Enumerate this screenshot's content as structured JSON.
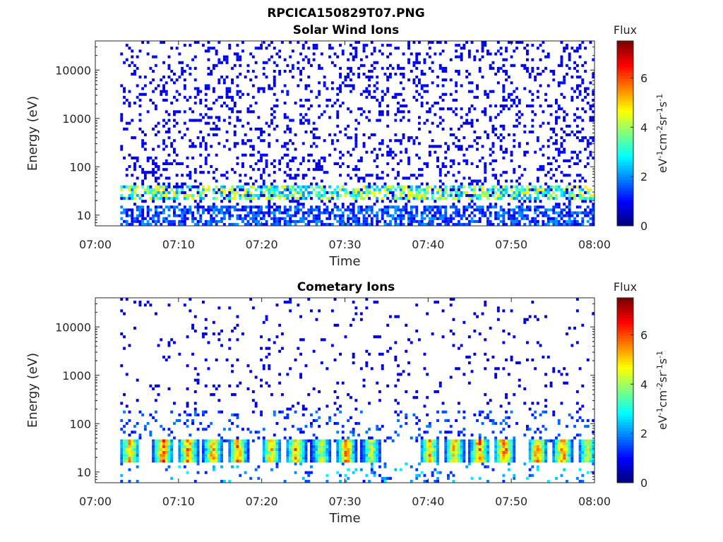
{
  "figure": {
    "filename_title": "RPCICA150829T07.PNG"
  },
  "chart_data": [
    {
      "type": "heatmap",
      "title": "Solar Wind Ions",
      "xlabel": "Time",
      "ylabel": "Energy (eV)",
      "x_ticks": [
        "07:00",
        "07:10",
        "07:20",
        "07:30",
        "07:40",
        "07:50",
        "08:00"
      ],
      "xlim": [
        "07:00",
        "08:00"
      ],
      "y_ticks": [
        10,
        100,
        1000,
        10000
      ],
      "y_tick_labels": [
        "10",
        "100",
        "1000",
        "10000"
      ],
      "ylim": [
        6,
        40000
      ],
      "y_scale": "log",
      "data_start": "07:03",
      "colorbar": {
        "title": "Flux",
        "label_parts": [
          "eV",
          "-1",
          "cm",
          "-2",
          "sr",
          "-1",
          "s",
          "-1"
        ],
        "ticks": [
          0,
          2,
          4,
          6
        ],
        "tick_labels": [
          "0",
          "2",
          "4",
          "6"
        ],
        "range": [
          0,
          7.5
        ],
        "colormap": "jet"
      },
      "bands": [
        {
          "energy_low": 20,
          "energy_high": 40,
          "flux_typical": 4.5,
          "description": "narrow solar wind proton band"
        },
        {
          "energy_low": 6,
          "energy_high": 15,
          "flux_typical": 2,
          "description": "low-energy streaks"
        }
      ],
      "background_flux": 0.5
    },
    {
      "type": "heatmap",
      "title": "Cometary Ions",
      "xlabel": "Time",
      "ylabel": "Energy (eV)",
      "x_ticks": [
        "07:00",
        "07:10",
        "07:20",
        "07:30",
        "07:40",
        "07:50",
        "08:00"
      ],
      "xlim": [
        "07:00",
        "08:00"
      ],
      "y_ticks": [
        10,
        100,
        1000,
        10000
      ],
      "y_tick_labels": [
        "10",
        "100",
        "1000",
        "10000"
      ],
      "ylim": [
        6,
        40000
      ],
      "y_scale": "log",
      "data_start": "07:03",
      "colorbar": {
        "title": "Flux",
        "label_parts": [
          "eV",
          "-1",
          "cm",
          "-2",
          "sr",
          "-1",
          "s",
          "-1"
        ],
        "ticks": [
          0,
          2,
          4,
          6
        ],
        "tick_labels": [
          "0",
          "2",
          "4",
          "6"
        ],
        "range": [
          0,
          7.5
        ],
        "colormap": "jet"
      },
      "bursts": [
        {
          "time": "07:04",
          "flux_peak": 6
        },
        {
          "time": "07:08",
          "flux_peak": 7
        },
        {
          "time": "07:11",
          "flux_peak": 6.5
        },
        {
          "time": "07:14",
          "flux_peak": 6.5
        },
        {
          "time": "07:17",
          "flux_peak": 6.5
        },
        {
          "time": "07:21",
          "flux_peak": 6
        },
        {
          "time": "07:24",
          "flux_peak": 6.5
        },
        {
          "time": "07:27",
          "flux_peak": 5
        },
        {
          "time": "07:30",
          "flux_peak": 6.5
        },
        {
          "time": "07:33",
          "flux_peak": 5
        },
        {
          "time": "07:40",
          "flux_peak": 6
        },
        {
          "time": "07:43",
          "flux_peak": 6
        },
        {
          "time": "07:46",
          "flux_peak": 6.5
        },
        {
          "time": "07:49",
          "flux_peak": 7
        },
        {
          "time": "07:53",
          "flux_peak": 6.5
        },
        {
          "time": "07:56",
          "flux_peak": 6.5
        },
        {
          "time": "07:59",
          "flux_peak": 5
        }
      ],
      "background_flux": 0.5
    }
  ]
}
